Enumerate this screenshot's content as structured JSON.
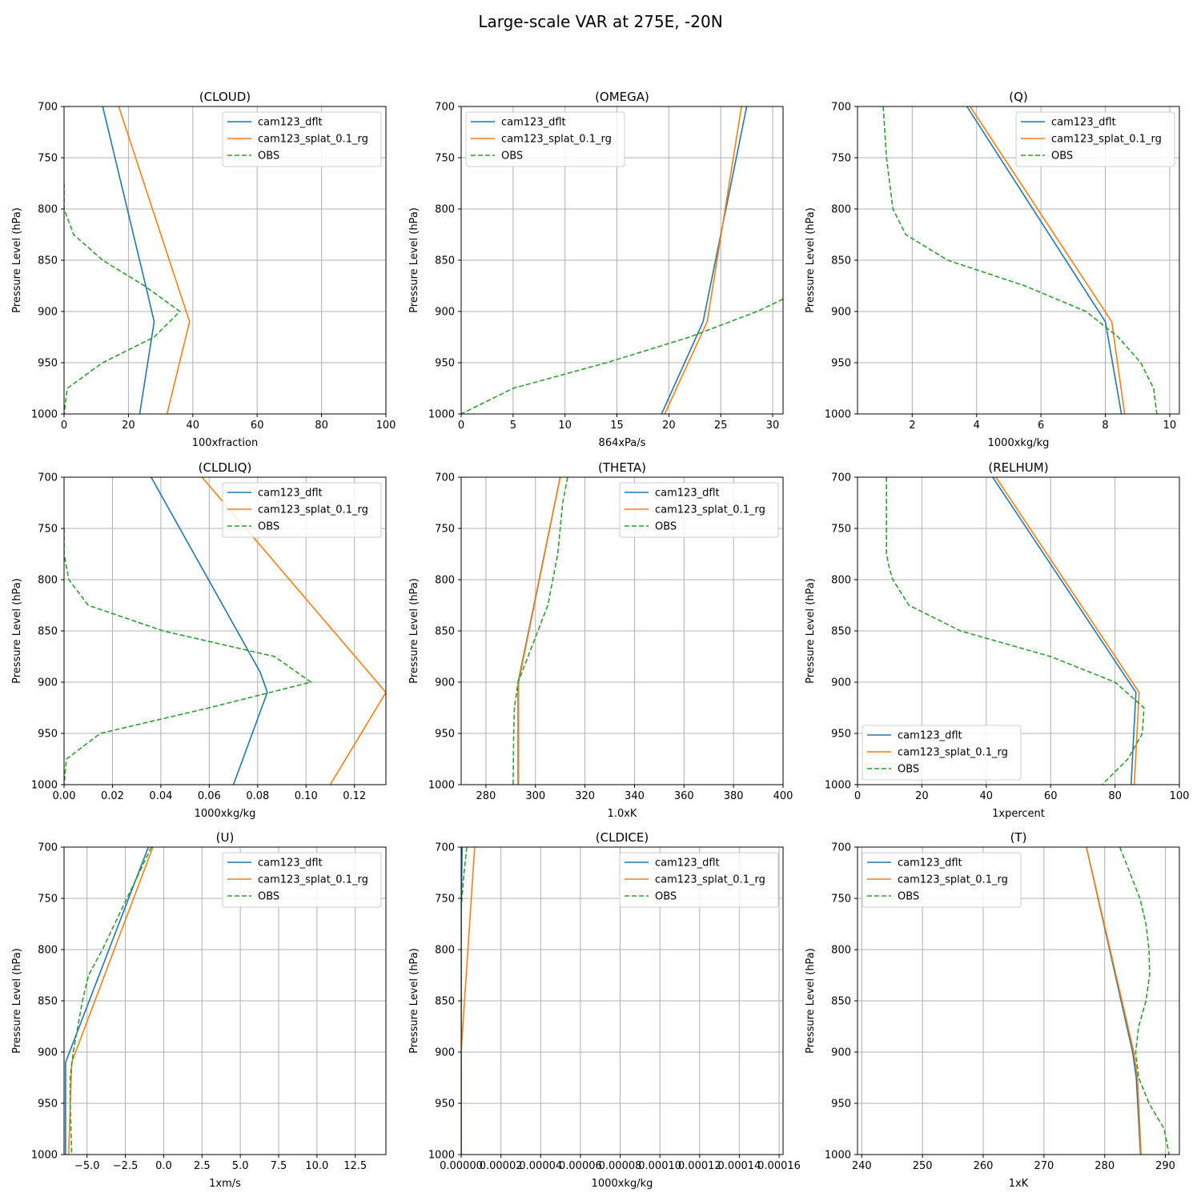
{
  "title": "Large-scale VAR at 275E, -20N",
  "colors": {
    "dflt": "#1f77b4",
    "splat": "#ff7f0e",
    "obs": "#2ca02c",
    "grid": "#b0b0b0"
  },
  "chart_data": [
    {
      "type": "line",
      "title": "(CLOUD)",
      "xlabel": "100xfraction",
      "ylabel": "Pressure Level (hPa)",
      "xlim": [
        0,
        100
      ],
      "ylim": [
        1000,
        700
      ],
      "xticks": [
        0,
        20,
        40,
        60,
        80,
        100
      ],
      "xtick_labels": [
        "0",
        "20",
        "40",
        "60",
        "80",
        "100"
      ],
      "yticks": [
        700,
        750,
        800,
        850,
        900,
        950,
        1000
      ],
      "legend": "top-right",
      "series": [
        {
          "name": "cam123_dflt",
          "style": "solid",
          "color": "#1f77b4",
          "x": [
            12,
            25,
            28,
            23.5
          ],
          "y": [
            700,
            870,
            910,
            1000
          ]
        },
        {
          "name": "cam123_splat_0.1_rg",
          "style": "solid",
          "color": "#ff7f0e",
          "x": [
            17,
            39,
            32
          ],
          "y": [
            700,
            910,
            1000
          ]
        },
        {
          "name": "OBS",
          "style": "dashed",
          "color": "#2ca02c",
          "x": [
            0,
            0,
            3,
            12,
            25,
            36,
            28,
            12,
            1,
            0
          ],
          "y": [
            775,
            800,
            825,
            850,
            875,
            900,
            925,
            950,
            975,
            1000
          ]
        }
      ]
    },
    {
      "type": "line",
      "title": "(OMEGA)",
      "xlabel": "864xPa/s",
      "ylabel": "Pressure Level (hPa)",
      "xlim": [
        0,
        31
      ],
      "ylim": [
        1000,
        700
      ],
      "xticks": [
        0,
        5,
        10,
        15,
        20,
        25,
        30
      ],
      "xtick_labels": [
        "0",
        "5",
        "10",
        "15",
        "20",
        "25",
        "30"
      ],
      "yticks": [
        700,
        750,
        800,
        850,
        900,
        950,
        1000
      ],
      "legend": "top-left",
      "series": [
        {
          "name": "cam123_dflt",
          "style": "solid",
          "color": "#1f77b4",
          "x": [
            27.5,
            23.3,
            19.3
          ],
          "y": [
            700,
            910,
            1000
          ]
        },
        {
          "name": "cam123_splat_0.1_rg",
          "style": "solid",
          "color": "#ff7f0e",
          "x": [
            27,
            23.7,
            19.6
          ],
          "y": [
            700,
            910,
            1000
          ]
        },
        {
          "name": "OBS",
          "style": "dashed",
          "color": "#2ca02c",
          "x": [
            31,
            28.5,
            22,
            14,
            5,
            0
          ],
          "y": [
            888,
            900,
            925,
            950,
            975,
            1000
          ]
        }
      ]
    },
    {
      "type": "line",
      "title": "(Q)",
      "xlabel": "1000xkg/kg",
      "ylabel": "Pressure Level (hPa)",
      "xlim": [
        0.3,
        10.3
      ],
      "ylim": [
        1000,
        700
      ],
      "xticks": [
        2,
        4,
        6,
        8,
        10
      ],
      "xtick_labels": [
        "2",
        "4",
        "6",
        "8",
        "10"
      ],
      "yticks": [
        700,
        750,
        800,
        850,
        900,
        950,
        1000
      ],
      "legend": "top-right",
      "series": [
        {
          "name": "cam123_dflt",
          "style": "solid",
          "color": "#1f77b4",
          "x": [
            3.7,
            8,
            8.5
          ],
          "y": [
            700,
            910,
            1000
          ]
        },
        {
          "name": "cam123_splat_0.1_rg",
          "style": "solid",
          "color": "#ff7f0e",
          "x": [
            3.8,
            8.2,
            8.6
          ],
          "y": [
            700,
            910,
            1000
          ]
        },
        {
          "name": "OBS",
          "style": "dashed",
          "color": "#2ca02c",
          "x": [
            1.1,
            1.2,
            1.4,
            1.8,
            3.1,
            5.5,
            7.4,
            8.4,
            9.1,
            9.5,
            9.6
          ],
          "y": [
            700,
            750,
            800,
            825,
            850,
            875,
            900,
            925,
            950,
            975,
            1000
          ]
        }
      ]
    },
    {
      "type": "line",
      "title": "(CLDLIQ)",
      "xlabel": "1000xkg/kg",
      "ylabel": "Pressure Level (hPa)",
      "xlim": [
        0,
        0.133
      ],
      "ylim": [
        1000,
        700
      ],
      "xticks": [
        0,
        0.02,
        0.04,
        0.06,
        0.08,
        0.1,
        0.12
      ],
      "xtick_labels": [
        "0.00",
        "0.02",
        "0.04",
        "0.06",
        "0.08",
        "0.10",
        "0.12"
      ],
      "yticks": [
        700,
        750,
        800,
        850,
        900,
        950,
        1000
      ],
      "legend": "top-right",
      "series": [
        {
          "name": "cam123_dflt",
          "style": "solid",
          "color": "#1f77b4",
          "x": [
            0.036,
            0.081,
            0.084,
            0.07
          ],
          "y": [
            700,
            890,
            910,
            1000
          ]
        },
        {
          "name": "cam123_splat_0.1_rg",
          "style": "solid",
          "color": "#ff7f0e",
          "x": [
            0.057,
            0.133,
            0.11
          ],
          "y": [
            700,
            910,
            1000
          ]
        },
        {
          "name": "OBS",
          "style": "dashed",
          "color": "#2ca02c",
          "x": [
            0,
            0,
            0.002,
            0.01,
            0.041,
            0.087,
            0.102,
            0.06,
            0.015,
            0.001,
            0
          ],
          "y": [
            750,
            775,
            800,
            825,
            850,
            875,
            900,
            925,
            950,
            975,
            1000
          ]
        }
      ]
    },
    {
      "type": "line",
      "title": "(THETA)",
      "xlabel": "1.0xK",
      "ylabel": "Pressure Level (hPa)",
      "xlim": [
        270,
        400
      ],
      "ylim": [
        1000,
        700
      ],
      "xticks": [
        280,
        300,
        320,
        340,
        360,
        380,
        400
      ],
      "xtick_labels": [
        "280",
        "300",
        "320",
        "340",
        "360",
        "380",
        "400"
      ],
      "yticks": [
        700,
        750,
        800,
        850,
        900,
        950,
        1000
      ],
      "legend": "top-right",
      "series": [
        {
          "name": "cam123_dflt",
          "style": "solid",
          "color": "#1f77b4",
          "x": [
            310,
            293,
            293
          ],
          "y": [
            700,
            900,
            1000
          ]
        },
        {
          "name": "cam123_splat_0.1_rg",
          "style": "solid",
          "color": "#ff7f0e",
          "x": [
            310,
            293.2,
            293.2
          ],
          "y": [
            700,
            900,
            1000
          ]
        },
        {
          "name": "OBS",
          "style": "dashed",
          "color": "#2ca02c",
          "x": [
            313,
            311,
            309,
            307,
            305,
            301,
            297,
            293,
            291.5,
            291.2,
            291
          ],
          "y": [
            700,
            725,
            775,
            800,
            825,
            850,
            875,
            900,
            925,
            950,
            1000
          ]
        }
      ]
    },
    {
      "type": "line",
      "title": "(RELHUM)",
      "xlabel": "1xpercent",
      "ylabel": "Pressure Level (hPa)",
      "xlim": [
        0,
        100
      ],
      "ylim": [
        1000,
        700
      ],
      "xticks": [
        0,
        20,
        40,
        60,
        80,
        100
      ],
      "xtick_labels": [
        "0",
        "20",
        "40",
        "60",
        "80",
        "100"
      ],
      "yticks": [
        700,
        750,
        800,
        850,
        900,
        950,
        1000
      ],
      "legend": "lower-left",
      "series": [
        {
          "name": "cam123_dflt",
          "style": "solid",
          "color": "#1f77b4",
          "x": [
            42,
            86.5,
            85
          ],
          "y": [
            700,
            910,
            1000
          ]
        },
        {
          "name": "cam123_splat_0.1_rg",
          "style": "solid",
          "color": "#ff7f0e",
          "x": [
            43,
            87.5,
            86
          ],
          "y": [
            700,
            910,
            1000
          ]
        },
        {
          "name": "OBS",
          "style": "dashed",
          "color": "#2ca02c",
          "x": [
            9,
            9,
            9,
            10,
            11,
            16,
            32,
            60,
            80,
            89,
            88.5,
            84,
            76
          ],
          "y": [
            700,
            750,
            775,
            790,
            800,
            825,
            850,
            875,
            900,
            925,
            950,
            975,
            1000
          ]
        }
      ]
    },
    {
      "type": "line",
      "title": "(U)",
      "xlabel": "1xm/s",
      "ylabel": "Pressure Level (hPa)",
      "xlim": [
        -6.5,
        14.5
      ],
      "ylim": [
        1000,
        700
      ],
      "xticks": [
        -5,
        -2.5,
        0,
        2.5,
        5,
        7.5,
        10,
        12.5
      ],
      "xtick_labels": [
        "−5.0",
        "−2.5",
        "0.0",
        "2.5",
        "5.0",
        "7.5",
        "10.0",
        "12.5"
      ],
      "yticks": [
        700,
        750,
        800,
        850,
        900,
        950,
        1000
      ],
      "legend": "top-right",
      "series": [
        {
          "name": "cam123_dflt",
          "style": "solid",
          "color": "#1f77b4",
          "x": [
            -1.0,
            -6.4,
            -6.4
          ],
          "y": [
            700,
            910,
            1000
          ]
        },
        {
          "name": "cam123_splat_0.1_rg",
          "style": "solid",
          "color": "#ff7f0e",
          "x": [
            -0.7,
            -6.0,
            -6.2
          ],
          "y": [
            700,
            910,
            1000
          ]
        },
        {
          "name": "OBS",
          "style": "dashed",
          "color": "#2ca02c",
          "x": [
            -0.8,
            -2.4,
            -4.0,
            -4.9,
            -5.3,
            -5.6,
            -5.9,
            -6.1,
            -6.1,
            -6.0
          ],
          "y": [
            700,
            750,
            800,
            825,
            850,
            875,
            900,
            925,
            950,
            1000
          ]
        }
      ]
    },
    {
      "type": "line",
      "title": "(CLDICE)",
      "xlabel": "1000xkg/kg",
      "ylabel": "Pressure Level (hPa)",
      "xlim": [
        0,
        0.000162
      ],
      "ylim": [
        1000,
        700
      ],
      "xticks": [
        0,
        2e-05,
        4e-05,
        6e-05,
        8e-05,
        0.0001,
        0.00012,
        0.00014,
        0.00016
      ],
      "xtick_labels": [
        "0.00000",
        "0.00002",
        "0.00004",
        "0.00006",
        "0.00008",
        "0.00010",
        "0.00012",
        "0.00014",
        "0.00016"
      ],
      "yticks": [
        700,
        750,
        800,
        850,
        900,
        950,
        1000
      ],
      "legend": "top-right",
      "series": [
        {
          "name": "cam123_dflt",
          "style": "solid",
          "color": "#1f77b4",
          "x": [
            5e-07,
            0,
            0
          ],
          "y": [
            700,
            760,
            1000
          ]
        },
        {
          "name": "cam123_splat_0.1_rg",
          "style": "solid",
          "color": "#ff7f0e",
          "x": [
            6.8e-06,
            0,
            0
          ],
          "y": [
            700,
            900,
            1000
          ]
        },
        {
          "name": "OBS",
          "style": "dashed",
          "color": "#2ca02c",
          "x": [
            2.8e-06,
            1.2e-06,
            0,
            0
          ],
          "y": [
            700,
            730,
            760,
            1000
          ]
        }
      ]
    },
    {
      "type": "line",
      "title": "(T)",
      "xlabel": "1xK",
      "ylabel": "Pressure Level (hPa)",
      "xlim": [
        239.3,
        292.3
      ],
      "ylim": [
        1000,
        700
      ],
      "xticks": [
        240,
        250,
        260,
        270,
        280,
        290
      ],
      "xtick_labels": [
        "240",
        "250",
        "260",
        "270",
        "280",
        "290"
      ],
      "yticks": [
        700,
        750,
        800,
        850,
        900,
        950,
        1000
      ],
      "legend": "top-left",
      "series": [
        {
          "name": "cam123_dflt",
          "style": "solid",
          "color": "#1f77b4",
          "x": [
            277,
            284.6,
            285.2,
            285.9
          ],
          "y": [
            700,
            900,
            925,
            1000
          ]
        },
        {
          "name": "cam123_splat_0.1_rg",
          "style": "solid",
          "color": "#ff7f0e",
          "x": [
            277,
            284.8,
            285.4,
            286.0
          ],
          "y": [
            700,
            900,
            925,
            1000
          ]
        },
        {
          "name": "OBS",
          "style": "dashed",
          "color": "#2ca02c",
          "x": [
            282.5,
            285.8,
            286.8,
            287.3,
            287.4,
            286.8,
            285.6,
            285.1,
            285.6,
            287.3,
            289.8,
            290.6
          ],
          "y": [
            700,
            750,
            775,
            800,
            825,
            850,
            875,
            900,
            925,
            950,
            975,
            1000
          ]
        }
      ]
    }
  ]
}
